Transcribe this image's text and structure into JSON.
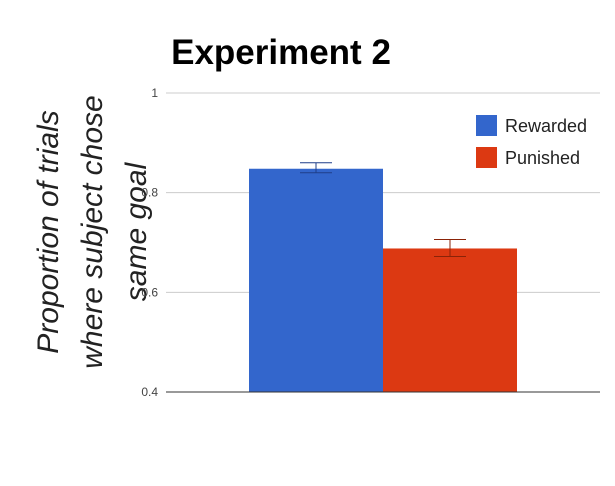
{
  "chart_data": {
    "type": "bar",
    "title": "Experiment 2",
    "ylabel_lines": [
      "Proportion of trials",
      "where subject chose",
      "same goal"
    ],
    "xlabel": "",
    "ylim": [
      0.4,
      1.0
    ],
    "yticks": [
      {
        "value": 0.4,
        "label": "0.4"
      },
      {
        "value": 0.6,
        "label": "0.6"
      },
      {
        "value": 0.8,
        "label": "0.8"
      },
      {
        "value": 1.0,
        "label": "1"
      }
    ],
    "grid": true,
    "legend_position": "top-right",
    "series": [
      {
        "name": "Rewarded",
        "value": 0.848,
        "error_low": 0.84,
        "error_high": 0.86,
        "color": "#3366CC",
        "error_color": "#1f3f8a"
      },
      {
        "name": "Punished",
        "value": 0.688,
        "error_low": 0.672,
        "error_high": 0.706,
        "color": "#DC3912",
        "error_color": "#8a2308"
      }
    ]
  }
}
